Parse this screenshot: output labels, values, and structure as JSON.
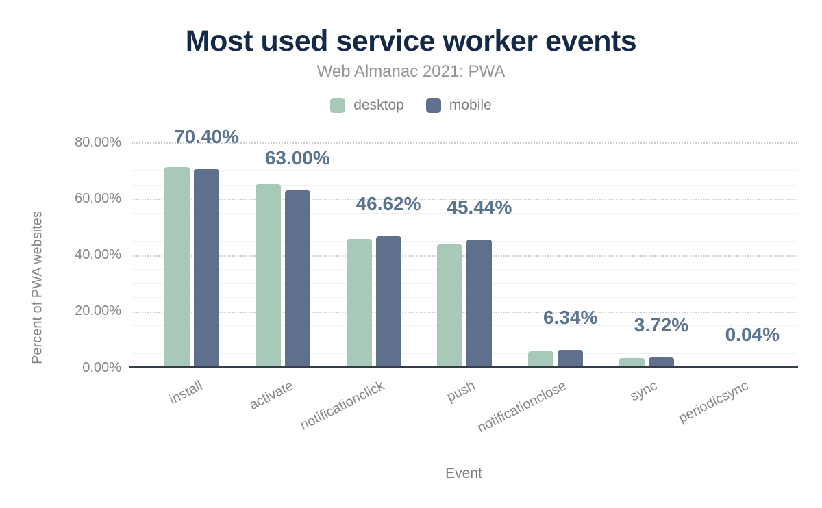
{
  "chart_data": {
    "type": "bar",
    "title": "Most used service worker events",
    "subtitle": "Web Almanac 2021: PWA",
    "xlabel": "Event",
    "ylabel": "Percent of PWA websites",
    "categories": [
      "install",
      "activate",
      "notificationclick",
      "push",
      "notificationclose",
      "sync",
      "periodicsync"
    ],
    "series": [
      {
        "name": "desktop",
        "color": "#a8c9b8",
        "values": [
          71.2,
          65.1,
          45.8,
          43.8,
          5.8,
          3.4,
          0.03
        ]
      },
      {
        "name": "mobile",
        "color": "#5f708c",
        "values": [
          70.4,
          63.0,
          46.62,
          45.44,
          6.34,
          3.72,
          0.04
        ]
      }
    ],
    "data_labels": {
      "labeled_series": "mobile",
      "texts": [
        "70.40%",
        "63.00%",
        "46.62%",
        "45.44%",
        "6.34%",
        "3.72%",
        "0.04%"
      ]
    },
    "y_ticks": [
      {
        "value": 0,
        "label": "0.00%"
      },
      {
        "value": 20,
        "label": "20.00%"
      },
      {
        "value": 40,
        "label": "40.00%"
      },
      {
        "value": 60,
        "label": "60.00%"
      },
      {
        "value": 80,
        "label": "80.00%"
      }
    ],
    "ylim": [
      0,
      80
    ],
    "grid": {
      "minor_step": 5,
      "major_step": 20,
      "major_style": "dotted",
      "minor_style": "solid"
    },
    "legend": [
      {
        "label": "desktop",
        "color": "#a8c9b8"
      },
      {
        "label": "mobile",
        "color": "#5f708c"
      }
    ],
    "legend_position": "top",
    "colors": {
      "title": "#142945",
      "subtitle": "#909399",
      "axis_text": "#85878c",
      "data_label": "#5a7490",
      "axis_line": "#343d49"
    }
  }
}
